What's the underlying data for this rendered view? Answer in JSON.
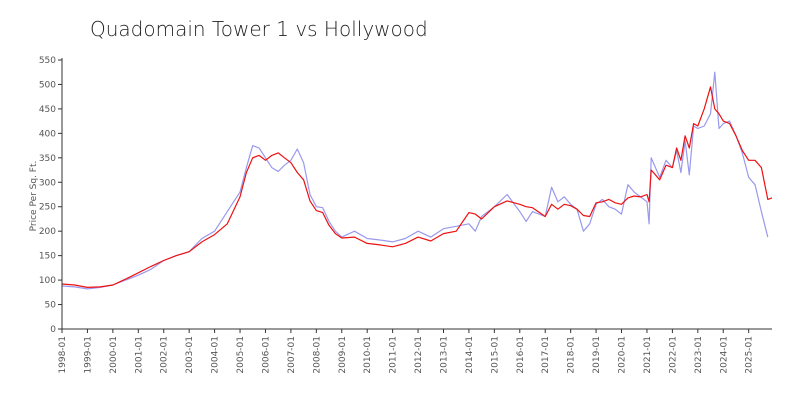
{
  "chart_data": {
    "type": "line",
    "title": "Quadomain Tower 1 vs Hollywood",
    "xlabel": "",
    "ylabel": "Price Per Sq. Ft.",
    "ylim": [
      0,
      550
    ],
    "yticks": [
      0,
      50,
      100,
      150,
      200,
      250,
      300,
      350,
      400,
      450,
      500,
      550
    ],
    "xlim": [
      "1998-01",
      "2025-12"
    ],
    "xticks": [
      "1998-01",
      "1999-01",
      "2000-01",
      "2001-01",
      "2002-01",
      "2003-01",
      "2004-01",
      "2005-01",
      "2006-01",
      "2007-01",
      "2008-01",
      "2009-01",
      "2010-01",
      "2011-01",
      "2012-01",
      "2013-01",
      "2014-01",
      "2015-01",
      "2016-01",
      "2017-01",
      "2018-01",
      "2019-01",
      "2020-01",
      "2021-01",
      "2022-01",
      "2023-01",
      "2024-01",
      "2025-01"
    ],
    "grid": false,
    "legend": "none",
    "series": [
      {
        "color": "#9999ee",
        "points": [
          [
            "1998-01",
            88
          ],
          [
            "1998-07",
            86
          ],
          [
            "1999-01",
            82
          ],
          [
            "1999-07",
            85
          ],
          [
            "2000-01",
            90
          ],
          [
            "2000-07",
            100
          ],
          [
            "2001-01",
            110
          ],
          [
            "2001-07",
            122
          ],
          [
            "2002-01",
            140
          ],
          [
            "2002-07",
            150
          ],
          [
            "2003-01",
            158
          ],
          [
            "2003-07",
            185
          ],
          [
            "2004-01",
            200
          ],
          [
            "2004-07",
            240
          ],
          [
            "2005-01",
            280
          ],
          [
            "2005-04",
            330
          ],
          [
            "2005-07",
            375
          ],
          [
            "2005-10",
            370
          ],
          [
            "2006-01",
            350
          ],
          [
            "2006-04",
            330
          ],
          [
            "2006-07",
            322
          ],
          [
            "2006-10",
            335
          ],
          [
            "2007-01",
            345
          ],
          [
            "2007-04",
            368
          ],
          [
            "2007-07",
            340
          ],
          [
            "2007-10",
            275
          ],
          [
            "2008-01",
            250
          ],
          [
            "2008-04",
            248
          ],
          [
            "2008-07",
            220
          ],
          [
            "2008-10",
            200
          ],
          [
            "2009-01",
            188
          ],
          [
            "2009-07",
            200
          ],
          [
            "2010-01",
            185
          ],
          [
            "2010-07",
            182
          ],
          [
            "2011-01",
            178
          ],
          [
            "2011-07",
            185
          ],
          [
            "2012-01",
            200
          ],
          [
            "2012-07",
            188
          ],
          [
            "2013-01",
            205
          ],
          [
            "2013-07",
            210
          ],
          [
            "2014-01",
            215
          ],
          [
            "2014-04",
            200
          ],
          [
            "2014-07",
            230
          ],
          [
            "2015-01",
            250
          ],
          [
            "2015-07",
            275
          ],
          [
            "2016-01",
            240
          ],
          [
            "2016-04",
            220
          ],
          [
            "2016-07",
            240
          ],
          [
            "2017-01",
            230
          ],
          [
            "2017-04",
            290
          ],
          [
            "2017-07",
            260
          ],
          [
            "2017-10",
            270
          ],
          [
            "2018-01",
            255
          ],
          [
            "2018-04",
            245
          ],
          [
            "2018-07",
            200
          ],
          [
            "2018-10",
            215
          ],
          [
            "2019-01",
            255
          ],
          [
            "2019-04",
            265
          ],
          [
            "2019-07",
            250
          ],
          [
            "2019-10",
            245
          ],
          [
            "2020-01",
            235
          ],
          [
            "2020-04",
            295
          ],
          [
            "2020-07",
            280
          ],
          [
            "2020-10",
            270
          ],
          [
            "2021-01",
            260
          ],
          [
            "2021-02",
            215
          ],
          [
            "2021-03",
            350
          ],
          [
            "2021-07",
            310
          ],
          [
            "2021-10",
            345
          ],
          [
            "2022-01",
            330
          ],
          [
            "2022-03",
            365
          ],
          [
            "2022-05",
            320
          ],
          [
            "2022-07",
            385
          ],
          [
            "2022-09",
            315
          ],
          [
            "2022-11",
            415
          ],
          [
            "2023-01",
            410
          ],
          [
            "2023-04",
            415
          ],
          [
            "2023-07",
            440
          ],
          [
            "2023-09",
            525
          ],
          [
            "2023-11",
            410
          ],
          [
            "2024-01",
            420
          ],
          [
            "2024-04",
            425
          ],
          [
            "2024-07",
            395
          ],
          [
            "2024-10",
            360
          ],
          [
            "2025-01",
            310
          ],
          [
            "2025-04",
            295
          ],
          [
            "2025-07",
            240
          ],
          [
            "2025-10",
            188
          ]
        ]
      },
      {
        "color": "#ee1111",
        "points": [
          [
            "1998-01",
            92
          ],
          [
            "1998-07",
            90
          ],
          [
            "1999-01",
            85
          ],
          [
            "1999-07",
            86
          ],
          [
            "2000-01",
            90
          ],
          [
            "2000-07",
            102
          ],
          [
            "2001-01",
            115
          ],
          [
            "2001-07",
            128
          ],
          [
            "2002-01",
            140
          ],
          [
            "2002-07",
            150
          ],
          [
            "2003-01",
            158
          ],
          [
            "2003-07",
            178
          ],
          [
            "2004-01",
            193
          ],
          [
            "2004-07",
            215
          ],
          [
            "2005-01",
            270
          ],
          [
            "2005-04",
            320
          ],
          [
            "2005-07",
            350
          ],
          [
            "2005-10",
            355
          ],
          [
            "2006-01",
            345
          ],
          [
            "2006-04",
            355
          ],
          [
            "2006-07",
            360
          ],
          [
            "2006-10",
            350
          ],
          [
            "2007-01",
            340
          ],
          [
            "2007-04",
            320
          ],
          [
            "2007-07",
            305
          ],
          [
            "2007-10",
            262
          ],
          [
            "2008-01",
            242
          ],
          [
            "2008-04",
            238
          ],
          [
            "2008-07",
            212
          ],
          [
            "2008-10",
            195
          ],
          [
            "2009-01",
            186
          ],
          [
            "2009-07",
            188
          ],
          [
            "2010-01",
            175
          ],
          [
            "2010-07",
            172
          ],
          [
            "2011-01",
            168
          ],
          [
            "2011-07",
            175
          ],
          [
            "2012-01",
            188
          ],
          [
            "2012-07",
            180
          ],
          [
            "2013-01",
            195
          ],
          [
            "2013-07",
            200
          ],
          [
            "2014-01",
            238
          ],
          [
            "2014-04",
            235
          ],
          [
            "2014-07",
            225
          ],
          [
            "2015-01",
            250
          ],
          [
            "2015-07",
            262
          ],
          [
            "2016-01",
            255
          ],
          [
            "2016-04",
            250
          ],
          [
            "2016-07",
            248
          ],
          [
            "2017-01",
            230
          ],
          [
            "2017-04",
            255
          ],
          [
            "2017-07",
            245
          ],
          [
            "2017-10",
            255
          ],
          [
            "2018-01",
            252
          ],
          [
            "2018-04",
            245
          ],
          [
            "2018-07",
            232
          ],
          [
            "2018-10",
            230
          ],
          [
            "2019-01",
            258
          ],
          [
            "2019-04",
            260
          ],
          [
            "2019-07",
            265
          ],
          [
            "2019-10",
            258
          ],
          [
            "2020-01",
            255
          ],
          [
            "2020-04",
            268
          ],
          [
            "2020-07",
            272
          ],
          [
            "2020-10",
            270
          ],
          [
            "2021-01",
            275
          ],
          [
            "2021-02",
            260
          ],
          [
            "2021-03",
            325
          ],
          [
            "2021-07",
            305
          ],
          [
            "2021-10",
            335
          ],
          [
            "2022-01",
            330
          ],
          [
            "2022-03",
            370
          ],
          [
            "2022-05",
            345
          ],
          [
            "2022-07",
            395
          ],
          [
            "2022-09",
            370
          ],
          [
            "2022-11",
            420
          ],
          [
            "2023-01",
            415
          ],
          [
            "2023-04",
            450
          ],
          [
            "2023-07",
            495
          ],
          [
            "2023-09",
            450
          ],
          [
            "2023-11",
            440
          ],
          [
            "2024-01",
            425
          ],
          [
            "2024-04",
            420
          ],
          [
            "2024-07",
            395
          ],
          [
            "2024-10",
            365
          ],
          [
            "2025-01",
            345
          ],
          [
            "2025-04",
            345
          ],
          [
            "2025-07",
            330
          ],
          [
            "2025-10",
            265
          ],
          [
            "2025-12",
            268
          ]
        ]
      }
    ]
  }
}
